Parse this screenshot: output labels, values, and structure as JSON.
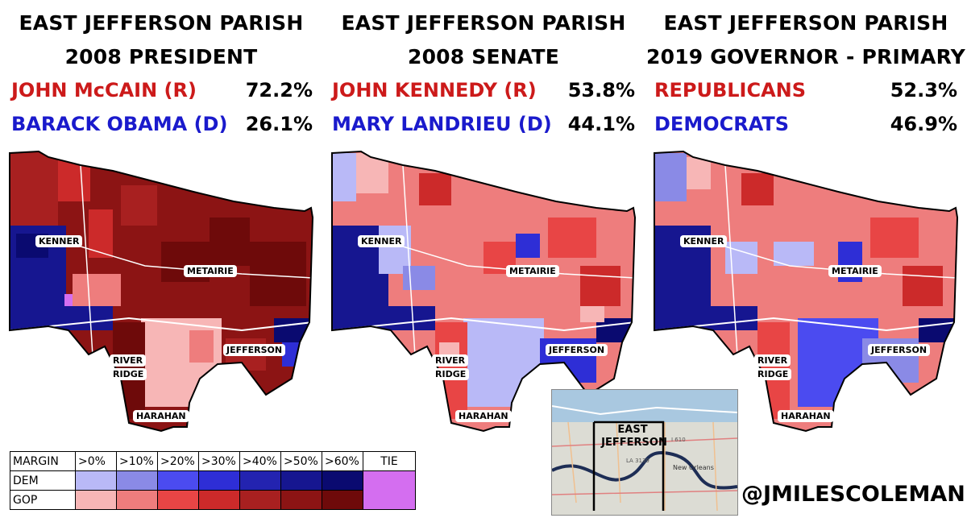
{
  "panels": [
    {
      "title_line1": "EAST JEFFERSON PARISH",
      "title_line2": "2008 PRESIDENT",
      "rep_name": "JOHN McCAIN (R)",
      "rep_pct": "72.2%",
      "dem_name": "BARACK OBAMA (D)",
      "dem_pct": "26.1%"
    },
    {
      "title_line1": "EAST JEFFERSON PARISH",
      "title_line2": "2008 SENATE",
      "rep_name": "JOHN KENNEDY (R)",
      "rep_pct": "53.8%",
      "dem_name": "MARY LANDRIEU (D)",
      "dem_pct": "44.1%"
    },
    {
      "title_line1": "EAST JEFFERSON PARISH",
      "title_line2": "2019 GOVERNOR - PRIMARY",
      "rep_name": "REPUBLICANS",
      "rep_pct": "52.3%",
      "dem_name": "DEMOCRATS",
      "dem_pct": "46.9%"
    }
  ],
  "places": {
    "kenner": "KENNER",
    "metairie": "METAIRIE",
    "jefferson": "JEFFERSON",
    "river": "RIVER",
    "ridge": "RIDGE",
    "harahan": "HARAHAN"
  },
  "legend": {
    "header_label": "MARGIN",
    "bins": [
      ">0%",
      ">10%",
      ">20%",
      ">30%",
      ">40%",
      ">50%",
      ">60%"
    ],
    "tie_label": "TIE",
    "dem_label": "DEM",
    "gop_label": "GOP",
    "dem_colors": [
      "#b9b9f7",
      "#8a8ae6",
      "#4b4bf0",
      "#2e2ed6",
      "#2323b0",
      "#161690",
      "#0a0a70"
    ],
    "gop_colors": [
      "#f7b6b6",
      "#ee7d7d",
      "#e84545",
      "#cc2a2a",
      "#a82020",
      "#8c1414",
      "#6e0a0a"
    ],
    "tie_color": "#d46ef0"
  },
  "inset": {
    "label_line1": "EAST",
    "label_line2": "JEFFERSON",
    "city_label": "New Orleans",
    "road_labels": [
      "LA 3139",
      "I 610"
    ]
  },
  "credit": "@JMILESCOLEMAN",
  "colors": {
    "rep_text": "#cc1a1a",
    "dem_text": "#1a1acc"
  }
}
